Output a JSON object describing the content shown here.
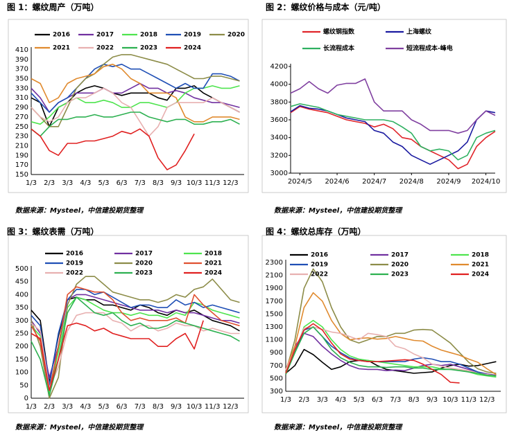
{
  "chart_data": [
    {
      "type": "line",
      "title": "图 1：螺纹周产（万吨）",
      "source": "数据来源：Mysteel，中信建投期货整理",
      "categories": [
        "1/3",
        null,
        "2/3",
        null,
        "3/3",
        null,
        "4/3",
        null,
        "5/3",
        null,
        "6/3",
        null,
        "7/3",
        null,
        "8/3",
        null,
        "9/3",
        null,
        "10/3",
        null,
        "11/3",
        null,
        "12/3",
        null
      ],
      "ylim": [
        150,
        410
      ],
      "yticks": [
        150,
        170,
        190,
        210,
        230,
        250,
        270,
        290,
        310,
        330,
        350,
        370,
        390,
        410
      ],
      "series": [
        {
          "name": "2016",
          "color": "#000000",
          "values": [
            310,
            300,
            250,
            290,
            300,
            320,
            330,
            335,
            330,
            320,
            315,
            320,
            320,
            320,
            310,
            305,
            330,
            330,
            335,
            320,
            310,
            300,
            290,
            280
          ]
        },
        {
          "name": "2017",
          "color": "#7030a0",
          "values": [
            330,
            310,
            280,
            300,
            310,
            320,
            320,
            320,
            330,
            320,
            320,
            330,
            340,
            330,
            330,
            320,
            325,
            320,
            310,
            305,
            300,
            300,
            295,
            290
          ]
        },
        {
          "name": "2018",
          "color": "#4ee44e",
          "values": [
            260,
            255,
            270,
            290,
            300,
            310,
            300,
            300,
            305,
            300,
            290,
            290,
            300,
            300,
            295,
            290,
            300,
            320,
            330,
            330,
            335,
            330,
            330,
            335
          ]
        },
        {
          "name": "2019",
          "color": "#1f4fb5",
          "values": [
            320,
            300,
            280,
            300,
            310,
            330,
            350,
            370,
            380,
            375,
            380,
            370,
            370,
            360,
            350,
            340,
            330,
            340,
            330,
            330,
            360,
            360,
            355,
            345
          ]
        },
        {
          "name": "2020",
          "color": "#8c8c48",
          "values": [
            290,
            270,
            250,
            250,
            290,
            330,
            350,
            360,
            380,
            395,
            400,
            400,
            395,
            390,
            385,
            380,
            370,
            360,
            350,
            350,
            355,
            355,
            350,
            345
          ]
        },
        {
          "name": "2021",
          "color": "#e08a2e",
          "values": [
            350,
            340,
            300,
            310,
            340,
            350,
            355,
            360,
            375,
            380,
            370,
            350,
            340,
            320,
            320,
            320,
            310,
            270,
            260,
            260,
            270,
            270,
            270,
            265
          ]
        },
        {
          "name": "2022",
          "color": "#e8b0b0",
          "values": [
            290,
            270,
            260,
            270,
            300,
            310,
            310,
            320,
            330,
            320,
            300,
            290,
            260,
            230,
            250,
            290,
            300,
            300,
            300,
            300,
            310,
            300,
            290,
            280
          ]
        },
        {
          "name": "2023",
          "color": "#2cb050",
          "values": [
            245,
            230,
            250,
            265,
            265,
            270,
            270,
            275,
            270,
            270,
            275,
            280,
            280,
            270,
            265,
            260,
            265,
            265,
            255,
            255,
            260,
            260,
            265,
            255
          ]
        },
        {
          "name": "2024",
          "color": "#e02020",
          "values": [
            245,
            230,
            200,
            190,
            215,
            215,
            220,
            220,
            225,
            230,
            240,
            235,
            245,
            230,
            185,
            160,
            170,
            200,
            235,
            null,
            null,
            null,
            null,
            null
          ]
        }
      ]
    },
    {
      "type": "line",
      "title": "图 2：螺纹价格与成本（元/吨）",
      "source": "数据来源：Mysteel，中信建投期货整理",
      "categories": [
        null,
        "2024/5",
        null,
        null,
        null,
        "2024/6",
        null,
        null,
        null,
        "2024/7",
        null,
        null,
        null,
        "2024/8",
        null,
        null,
        null,
        "2024/9",
        null,
        null,
        null,
        "2024/10",
        null
      ],
      "ylim": [
        3000,
        4200
      ],
      "yticks": [
        3000,
        3200,
        3400,
        3600,
        3800,
        4000,
        4200
      ],
      "series": [
        {
          "name": "螺纹钢指数",
          "color": "#e0242a",
          "values": [
            3680,
            3750,
            3720,
            3700,
            3680,
            3640,
            3600,
            3580,
            3560,
            3520,
            3550,
            3500,
            3400,
            3380,
            3300,
            3250,
            3200,
            3150,
            3050,
            3100,
            3300,
            3400,
            3470
          ]
        },
        {
          "name": "上海螺纹",
          "color": "#1a1aa0",
          "values": [
            3690,
            3760,
            3730,
            3720,
            3700,
            3660,
            3620,
            3600,
            3580,
            3480,
            3450,
            3350,
            3300,
            3200,
            3150,
            3100,
            3150,
            3200,
            3250,
            3350,
            3600,
            3700,
            3680
          ]
        },
        {
          "name": "长流程成本",
          "color": "#2eb060",
          "values": [
            3750,
            3780,
            3760,
            3740,
            3700,
            3660,
            3640,
            3620,
            3600,
            3600,
            3600,
            3580,
            3520,
            3450,
            3300,
            3250,
            3270,
            3250,
            3150,
            3200,
            3400,
            3450,
            3480
          ]
        },
        {
          "name": "短流程成本-峰电",
          "color": "#8040a0",
          "values": [
            3900,
            3950,
            4030,
            3950,
            3900,
            3990,
            4010,
            4010,
            4060,
            3800,
            3700,
            3700,
            3700,
            3600,
            3550,
            3480,
            3480,
            3480,
            3450,
            3480,
            3600,
            3700,
            3650
          ]
        }
      ]
    },
    {
      "type": "line",
      "title": "图 3：螺纹表需（万吨）",
      "source": "数据来源：Mysteel，中信建投期货整理",
      "categories": [
        "1/3",
        null,
        "2/3",
        null,
        "3/3",
        null,
        "4/3",
        null,
        "5/3",
        null,
        "6/3",
        null,
        "7/3",
        null,
        "8/3",
        null,
        "9/3",
        null,
        "10/3",
        null,
        "11/3",
        null,
        "12/3",
        null
      ],
      "ylim": [
        0,
        500
      ],
      "yticks": [
        0,
        50,
        100,
        150,
        200,
        250,
        300,
        350,
        400,
        450,
        500
      ],
      "series": [
        {
          "name": "2016",
          "color": "#000000",
          "values": [
            340,
            300,
            60,
            240,
            380,
            390,
            380,
            380,
            360,
            360,
            350,
            340,
            360,
            350,
            330,
            320,
            340,
            330,
            340,
            320,
            300,
            290,
            280,
            260
          ]
        },
        {
          "name": "2017",
          "color": "#7030a0",
          "values": [
            300,
            250,
            80,
            200,
            380,
            400,
            400,
            390,
            380,
            370,
            360,
            350,
            340,
            340,
            340,
            330,
            340,
            330,
            330,
            320,
            310,
            300,
            300,
            290
          ]
        },
        {
          "name": "2018",
          "color": "#4ee44e",
          "values": [
            280,
            240,
            20,
            180,
            350,
            390,
            380,
            360,
            340,
            330,
            330,
            320,
            330,
            320,
            320,
            310,
            330,
            320,
            370,
            360,
            340,
            330,
            320,
            310
          ]
        },
        {
          "name": "2019",
          "color": "#1f4fb5",
          "values": [
            320,
            280,
            50,
            250,
            380,
            420,
            420,
            400,
            410,
            390,
            370,
            350,
            360,
            360,
            350,
            350,
            380,
            360,
            370,
            350,
            360,
            350,
            340,
            330
          ]
        },
        {
          "name": "2020",
          "color": "#8c8c48",
          "values": [
            300,
            200,
            0,
            80,
            360,
            440,
            470,
            470,
            440,
            410,
            400,
            390,
            380,
            380,
            370,
            380,
            400,
            390,
            420,
            430,
            460,
            420,
            380,
            370
          ]
        },
        {
          "name": "2021",
          "color": "#e05030",
          "values": [
            280,
            220,
            30,
            200,
            400,
            430,
            420,
            410,
            410,
            380,
            330,
            300,
            310,
            300,
            300,
            300,
            310,
            290,
            400,
            360,
            330,
            300,
            290,
            280
          ]
        },
        {
          "name": "2022",
          "color": "#e8b0b0",
          "values": [
            290,
            260,
            40,
            120,
            260,
            320,
            330,
            330,
            330,
            300,
            290,
            260,
            280,
            280,
            260,
            270,
            290,
            280,
            280,
            260,
            270,
            260,
            250,
            250
          ]
        },
        {
          "name": "2023",
          "color": "#2cb050",
          "values": [
            220,
            150,
            10,
            150,
            330,
            390,
            360,
            330,
            320,
            330,
            300,
            280,
            290,
            270,
            270,
            280,
            300,
            290,
            280,
            270,
            260,
            250,
            240,
            220
          ]
        },
        {
          "name": "2024",
          "color": "#e02020",
          "values": [
            250,
            230,
            30,
            150,
            280,
            290,
            280,
            260,
            270,
            250,
            240,
            230,
            230,
            230,
            200,
            200,
            230,
            250,
            190,
            300,
            null,
            null,
            null,
            null
          ]
        }
      ]
    },
    {
      "type": "line",
      "title": "图 4：螺纹总库存（万吨）",
      "source": "数据来源：Mysteel，中信建投期货整理",
      "categories": [
        "1/3",
        null,
        "2/3",
        null,
        "3/3",
        null,
        "4/3",
        null,
        "5/3",
        null,
        "6/3",
        null,
        "7/3",
        null,
        "8/3",
        null,
        "9/3",
        null,
        "10/3",
        null,
        "11/3",
        null,
        "12/3",
        null
      ],
      "ylim": [
        300,
        2300
      ],
      "yticks": [
        300,
        500,
        700,
        900,
        1100,
        1300,
        1500,
        1700,
        1900,
        2100,
        2300
      ],
      "series": [
        {
          "name": "2016",
          "color": "#000000",
          "values": [
            580,
            700,
            950,
            870,
            750,
            640,
            680,
            760,
            780,
            780,
            700,
            640,
            620,
            600,
            580,
            590,
            600,
            660,
            700,
            720,
            690,
            700,
            730,
            760
          ]
        },
        {
          "name": "2017",
          "color": "#7030a0",
          "values": [
            620,
            1000,
            1200,
            1150,
            1000,
            880,
            780,
            700,
            650,
            640,
            640,
            620,
            630,
            620,
            660,
            700,
            720,
            700,
            720,
            680,
            640,
            600,
            570,
            550
          ]
        },
        {
          "name": "2018",
          "color": "#4ee44e",
          "values": [
            580,
            900,
            1300,
            1400,
            1300,
            1100,
            950,
            850,
            800,
            780,
            760,
            740,
            720,
            700,
            680,
            680,
            680,
            650,
            640,
            640,
            600,
            560,
            540,
            520
          ]
        },
        {
          "name": "2019",
          "color": "#1f4fb5",
          "values": [
            600,
            900,
            1250,
            1300,
            1150,
            1000,
            900,
            820,
            780,
            760,
            760,
            760,
            760,
            760,
            800,
            820,
            800,
            760,
            760,
            720,
            660,
            600,
            560,
            540
          ]
        },
        {
          "name": "2020",
          "color": "#8c8c48",
          "values": [
            600,
            1100,
            1900,
            2200,
            2000,
            1600,
            1300,
            1100,
            1050,
            1100,
            1150,
            1150,
            1200,
            1200,
            1250,
            1260,
            1250,
            1150,
            1050,
            900,
            750,
            650,
            600,
            580
          ]
        },
        {
          "name": "2021",
          "color": "#e08a2e",
          "values": [
            640,
            1000,
            1600,
            1830,
            1700,
            1400,
            1200,
            1100,
            1120,
            1130,
            1110,
            1120,
            1150,
            1120,
            1090,
            1080,
            1000,
            940,
            900,
            860,
            800,
            750,
            650,
            560
          ]
        },
        {
          "name": "2022",
          "color": "#e8b0b0",
          "values": [
            630,
            950,
            1280,
            1300,
            1260,
            1220,
            1200,
            1150,
            1100,
            1200,
            1180,
            1150,
            1000,
            960,
            880,
            820,
            720,
            690,
            660,
            640,
            620,
            580,
            560,
            540
          ]
        },
        {
          "name": "2023",
          "color": "#2cb050",
          "values": [
            560,
            900,
            1200,
            1300,
            1150,
            950,
            820,
            750,
            700,
            680,
            680,
            670,
            680,
            680,
            660,
            660,
            640,
            640,
            640,
            620,
            600,
            580,
            550,
            540
          ]
        },
        {
          "name": "2024",
          "color": "#e02020",
          "values": [
            580,
            950,
            1250,
            1350,
            1250,
            1050,
            880,
            800,
            780,
            760,
            760,
            770,
            780,
            790,
            780,
            720,
            640,
            560,
            440,
            430,
            null,
            null,
            null,
            null
          ]
        }
      ]
    }
  ]
}
